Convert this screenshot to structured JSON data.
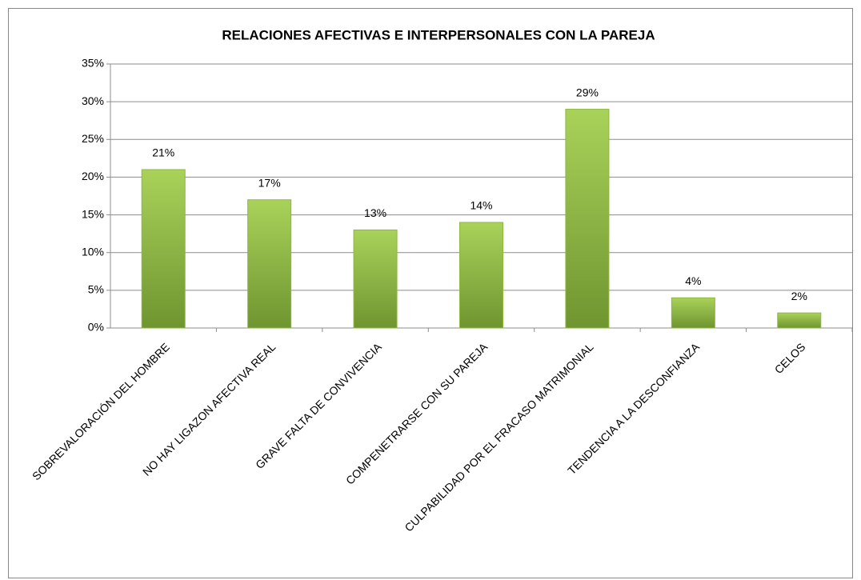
{
  "chart_data": {
    "type": "bar",
    "title": "RELACIONES AFECTIVAS E INTERPERSONALES CON LA PAREJA",
    "categories": [
      "SOBREVALORACIÓN DEL HOMBRE",
      "NO HAY LIGAZON AFECTIVA REAL",
      "GRAVE FALTA DE CONVIVENCIA",
      "COMPENETRARSE CON SU PAREJA",
      "CULPABILIDAD POR EL FRACASO MATRIMONIAL",
      "TENDENCIA A LA DESCONFIANZA",
      "CELOS"
    ],
    "values": [
      21,
      17,
      13,
      14,
      29,
      4,
      2
    ],
    "value_labels": [
      "21%",
      "17%",
      "13%",
      "14%",
      "29%",
      "4%",
      "2%"
    ],
    "color": "#8db83c",
    "ylim": [
      0,
      35
    ],
    "yticks": [
      {
        "value": 0,
        "label": "0%"
      },
      {
        "value": 5,
        "label": "5%"
      },
      {
        "value": 10,
        "label": "10%"
      },
      {
        "value": 15,
        "label": "15%"
      },
      {
        "value": 20,
        "label": "20%"
      },
      {
        "value": 25,
        "label": "25%"
      },
      {
        "value": 30,
        "label": "30%"
      },
      {
        "value": 35,
        "label": "35%"
      }
    ],
    "grid": true
  }
}
